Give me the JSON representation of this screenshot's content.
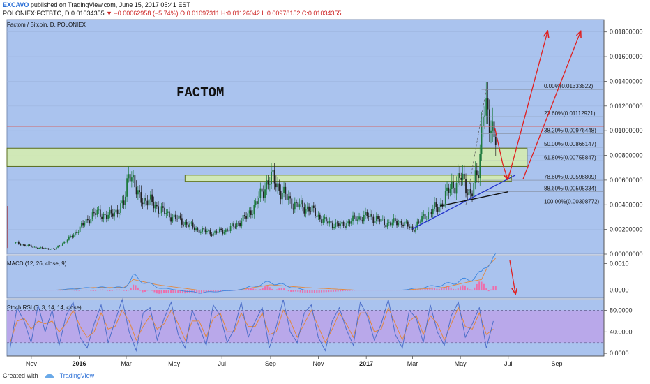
{
  "header": {
    "author": "EXCAVO",
    "published": "published on TradingView.com, June 15, 2017 05:41 EST",
    "symbol": "POLONIEX:FCTBTC, D",
    "last": "0.01034355",
    "change": "▼ −0.00062958 (−5.74%)",
    "ohlc": "O:0.01097311 H:0.01126042 L:0.00978152 C:0.01034355"
  },
  "footer": {
    "created_with": "Created with",
    "brand": "TradingView"
  },
  "colors": {
    "panel_bg": "#aac3ee",
    "stoch_band": "#b9a8ea",
    "zone_fill": "#d4ecb0",
    "zone_stroke": "#5a6e1c",
    "fib_line": "#8a96aa",
    "trend": "#1f2fc9",
    "arrow": "#e02020",
    "up_candle": "#1e7a3e",
    "down_candle": "#222222",
    "macd_hist": "#ee6dab",
    "macd_line": "#3b86e0",
    "signal_line": "#e2883e",
    "stoch_k": "#4d6fc9",
    "stoch_d": "#e2883e"
  },
  "chart_data": [
    {
      "panel": "price",
      "type": "candlestick",
      "title": "Factom / Bitcoin, D, POLONIEX",
      "annotation": "FACTOM",
      "ylim": [
        0,
        0.019
      ],
      "yticks": [
        "0.01800000",
        "0.01600000",
        "0.01400000",
        "0.01200000",
        "0.01000000",
        "0.00800000",
        "0.00600000",
        "0.00400000",
        "0.00200000",
        "0.00000000"
      ],
      "ytick_values": [
        0.018,
        0.016,
        0.014,
        0.012,
        0.01,
        0.008,
        0.006,
        0.004,
        0.002,
        0.0
      ],
      "xticks": [
        "Nov",
        "2016",
        "Mar",
        "May",
        "Jul",
        "Sep",
        "Nov",
        "2017",
        "Mar",
        "May",
        "Jul",
        "Sep"
      ],
      "price_series": {
        "x": [
          "2015-10-12",
          "2015-10-25",
          "2015-11-10",
          "2015-12-01",
          "2015-12-20",
          "2016-01-05",
          "2016-01-20",
          "2016-02-10",
          "2016-02-28",
          "2016-03-05",
          "2016-03-15",
          "2016-04-01",
          "2016-04-20",
          "2016-05-10",
          "2016-05-30",
          "2016-06-20",
          "2016-07-10",
          "2016-08-01",
          "2016-08-15",
          "2016-08-28",
          "2016-09-05",
          "2016-09-15",
          "2016-10-01",
          "2016-10-20",
          "2016-11-10",
          "2016-11-30",
          "2016-12-20",
          "2017-01-05",
          "2017-01-25",
          "2017-02-15",
          "2017-03-01",
          "2017-03-20",
          "2017-04-05",
          "2017-04-20",
          "2017-05-01",
          "2017-05-15",
          "2017-05-25",
          "2017-05-30",
          "2017-06-03",
          "2017-06-08",
          "2017-06-15"
        ],
        "values": [
          0.0009,
          0.0007,
          0.0005,
          0.0004,
          0.0013,
          0.0023,
          0.0033,
          0.0031,
          0.0041,
          0.0072,
          0.0047,
          0.0042,
          0.0033,
          0.0027,
          0.002,
          0.0017,
          0.002,
          0.003,
          0.0042,
          0.0059,
          0.0061,
          0.005,
          0.004,
          0.0037,
          0.0026,
          0.0023,
          0.0029,
          0.0031,
          0.0025,
          0.0026,
          0.002,
          0.0033,
          0.0039,
          0.0055,
          0.0062,
          0.0048,
          0.007,
          0.0125,
          0.0113,
          0.0099,
          0.0103
        ]
      },
      "fibonacci": [
        {
          "label": "0.00%(0.01333522)",
          "value": 0.01333522
        },
        {
          "label": "23.60%(0.01112921)",
          "value": 0.01112921
        },
        {
          "label": "38.20%(0.00976448)",
          "value": 0.00976448
        },
        {
          "label": "50.00%(0.00866147)",
          "value": 0.00866147
        },
        {
          "label": "61.80%(0.00755847)",
          "value": 0.00755847
        },
        {
          "label": "78.60%(0.00598809)",
          "value": 0.00598809
        },
        {
          "label": "88.60%(0.00505334)",
          "value": 0.00505334
        },
        {
          "label": "100.00%(0.00398772)",
          "value": 0.00398772
        }
      ],
      "zones": [
        {
          "x_start": "2015-10-01",
          "x_end": "2017-07-25",
          "y_low": 0.0071,
          "y_high": 0.00858
        },
        {
          "x_start": "2016-05-15",
          "x_end": "2017-07-05",
          "y_low": 0.0059,
          "y_high": 0.0064
        }
      ],
      "trendlines": [
        {
          "x_start": "2017-03-01",
          "y_start": 0.00205,
          "x_end": "2017-07-10",
          "y_end": 0.0064
        },
        {
          "x_start": "2017-04-05",
          "y_start": 0.0039,
          "x_end": "2017-07-01",
          "y_end": 0.00505
        }
      ],
      "arrows": [
        {
          "x_start": "2017-06-14",
          "y_start": 0.0102,
          "x_end": "2017-06-24",
          "y_end": 0.0073
        },
        {
          "x_start": "2017-06-24",
          "y_start": 0.0073,
          "x_end": "2017-06-30",
          "y_end": 0.0061
        },
        {
          "x_start": "2017-07-01",
          "y_start": 0.0061,
          "x_end": "2017-08-20",
          "y_end": 0.018
        },
        {
          "x_start": "2017-07-20",
          "y_start": 0.0061,
          "x_end": "2017-10-01",
          "y_end": 0.018
        }
      ]
    },
    {
      "panel": "macd",
      "type": "line",
      "title": "MACD (12, 26, close, 9)",
      "ylim": [
        -0.0003,
        0.0013
      ],
      "yticks": [
        "0.0010",
        "0.0000"
      ],
      "ytick_values": [
        0.001,
        0.0
      ],
      "x": [
        "2015-10-12",
        "2015-12-01",
        "2016-01-20",
        "2016-02-28",
        "2016-03-10",
        "2016-04-10",
        "2016-06-01",
        "2016-07-20",
        "2016-09-01",
        "2016-10-15",
        "2016-12-20",
        "2017-02-15",
        "2017-04-10",
        "2017-05-10",
        "2017-05-28",
        "2017-06-05",
        "2017-06-15"
      ],
      "series": [
        {
          "values": [
            0.0,
            0.0,
            0.0001,
            0.0001,
            0.0005,
            0.0001,
            -0.0001,
            0.0,
            0.0003,
            0.0,
            0.0,
            0.0,
            0.0002,
            0.0004,
            0.0006,
            0.0012,
            0.0011
          ]
        },
        {
          "values": [
            0.0,
            0.0,
            0.0001,
            0.0001,
            0.0004,
            0.0002,
            0.0,
            0.0,
            0.0002,
            0.0001,
            0.0,
            0.0,
            0.0001,
            0.0003,
            0.0004,
            0.0009,
            0.0012
          ]
        }
      ]
    },
    {
      "panel": "stoch_rsi",
      "type": "line",
      "title": "Stoch RSI (3, 3, 14, 14, close)",
      "ylim": [
        -5,
        100
      ],
      "yticks": [
        "80.0000",
        "40.0000",
        "0.0000"
      ],
      "ytick_values": [
        80,
        40,
        0
      ],
      "bands": [
        20,
        80
      ],
      "series": [
        {
          "values": [
            10,
            85,
            60,
            20,
            90,
            40,
            80,
            15,
            70,
            95,
            30,
            10,
            55,
            90,
            20,
            60,
            100,
            40,
            5,
            75,
            85,
            25,
            65,
            95,
            35,
            10,
            80,
            50,
            15,
            90,
            70,
            20,
            45,
            95,
            30,
            60,
            85,
            10,
            50,
            100,
            40,
            20,
            75,
            90,
            30,
            5,
            60,
            85,
            45,
            15,
            95,
            70,
            25,
            55,
            100,
            35,
            10,
            80,
            65,
            20,
            90,
            40,
            15,
            70,
            95,
            30,
            55,
            85,
            10,
            60
          ]
        },
        {
          "values": [
            20,
            60,
            65,
            45,
            60,
            55,
            60,
            40,
            55,
            80,
            50,
            30,
            40,
            75,
            45,
            50,
            80,
            60,
            25,
            50,
            70,
            45,
            55,
            80,
            55,
            25,
            60,
            60,
            30,
            65,
            75,
            40,
            40,
            75,
            50,
            50,
            75,
            35,
            40,
            80,
            60,
            30,
            55,
            80,
            50,
            20,
            45,
            75,
            55,
            30,
            75,
            75,
            40,
            45,
            85,
            55,
            25,
            60,
            70,
            35,
            70,
            55,
            25,
            55,
            85,
            50,
            45,
            75,
            35,
            45
          ]
        }
      ]
    }
  ]
}
